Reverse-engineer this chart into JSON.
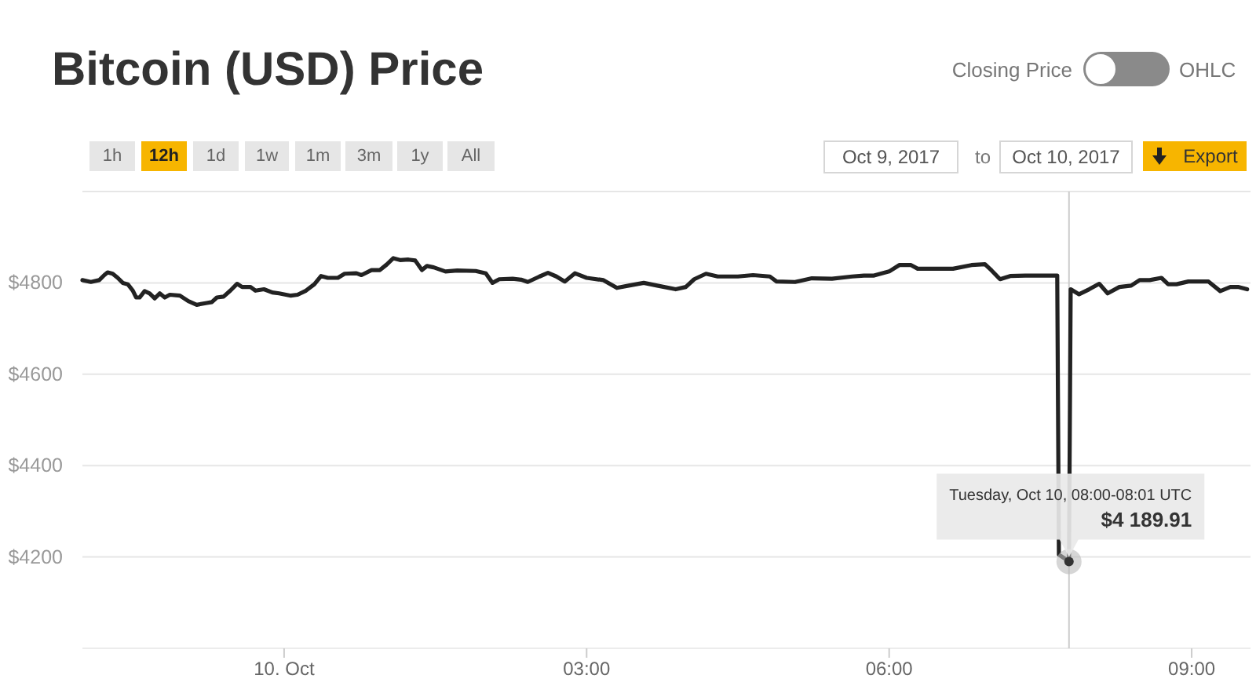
{
  "chart_data": {
    "type": "line",
    "title": "Bitcoin (USD) Price",
    "x": [
      "2017-10-09T22:00",
      "2017-10-09T22:05",
      "2017-10-09T22:10",
      "2017-10-09T22:13",
      "2017-10-09T22:15",
      "2017-10-09T22:18",
      "2017-10-09T22:21",
      "2017-10-09T22:24",
      "2017-10-09T22:27",
      "2017-10-09T22:30",
      "2017-10-09T22:32",
      "2017-10-09T22:34",
      "2017-10-09T22:37",
      "2017-10-09T22:40",
      "2017-10-09T22:43",
      "2017-10-09T22:46",
      "2017-10-09T22:49",
      "2017-10-09T22:52",
      "2017-10-09T22:58",
      "2017-10-09T23:03",
      "2017-10-09T23:08",
      "2017-10-09T23:14",
      "2017-10-09T23:17",
      "2017-10-09T23:20",
      "2017-10-09T23:24",
      "2017-10-09T23:28",
      "2017-10-09T23:32",
      "2017-10-09T23:35",
      "2017-10-09T23:40",
      "2017-10-09T23:43",
      "2017-10-09T23:48",
      "2017-10-09T23:53",
      "2017-10-09T23:57",
      "2017-10-10T00:04",
      "2017-10-10T00:08",
      "2017-10-10T00:13",
      "2017-10-10T00:18",
      "2017-10-10T00:22",
      "2017-10-10T00:26",
      "2017-10-10T00:32",
      "2017-10-10T00:36",
      "2017-10-10T00:43",
      "2017-10-10T00:46",
      "2017-10-10T00:52",
      "2017-10-10T00:57",
      "2017-10-10T01:01",
      "2017-10-10T01:05",
      "2017-10-10T01:09",
      "2017-10-10T01:14",
      "2017-10-10T01:18",
      "2017-10-10T01:22",
      "2017-10-10T01:25",
      "2017-10-10T01:29",
      "2017-10-10T01:36",
      "2017-10-10T01:43",
      "2017-10-10T01:54",
      "2017-10-10T02:00",
      "2017-10-10T02:04",
      "2017-10-10T02:08",
      "2017-10-10T02:16",
      "2017-10-10T02:21",
      "2017-10-10T02:25",
      "2017-10-10T02:32",
      "2017-10-10T02:37",
      "2017-10-10T02:42",
      "2017-10-10T02:47",
      "2017-10-10T02:53",
      "2017-10-10T03:00",
      "2017-10-10T03:10",
      "2017-10-10T03:18",
      "2017-10-10T03:25",
      "2017-10-10T03:34",
      "2017-10-10T03:42",
      "2017-10-10T03:53",
      "2017-10-10T03:59",
      "2017-10-10T04:04",
      "2017-10-10T04:11",
      "2017-10-10T04:18",
      "2017-10-10T04:30",
      "2017-10-10T04:39",
      "2017-10-10T04:49",
      "2017-10-10T04:53",
      "2017-10-10T05:04",
      "2017-10-10T05:14",
      "2017-10-10T05:26",
      "2017-10-10T05:38",
      "2017-10-10T05:45",
      "2017-10-10T05:51",
      "2017-10-10T06:00",
      "2017-10-10T06:06",
      "2017-10-10T06:13",
      "2017-10-10T06:17",
      "2017-10-10T06:38",
      "2017-10-10T06:49",
      "2017-10-10T06:57",
      "2017-10-10T07:01",
      "2017-10-10T07:06",
      "2017-10-10T07:12",
      "2017-10-10T07:21",
      "2017-10-10T07:40",
      "2017-10-10T07:41",
      "2017-10-10T07:47",
      "2017-10-10T07:48",
      "2017-10-10T07:53",
      "2017-10-10T07:59",
      "2017-10-10T08:05",
      "2017-10-10T08:10",
      "2017-10-10T08:17",
      "2017-10-10T08:24",
      "2017-10-10T08:29",
      "2017-10-10T08:35",
      "2017-10-10T08:42",
      "2017-10-10T08:46",
      "2017-10-10T08:51",
      "2017-10-10T08:58",
      "2017-10-10T09:10",
      "2017-10-10T09:17",
      "2017-10-10T09:23",
      "2017-10-10T09:28",
      "2017-10-10T09:33"
    ],
    "series": [
      {
        "color": "#222222",
        "values": [
          4806,
          4802,
          4806,
          4817,
          4823,
          4820,
          4811,
          4800,
          4797,
          4783,
          4768,
          4768,
          4782,
          4777,
          4766,
          4777,
          4768,
          4774,
          4772,
          4760,
          4752,
          4756,
          4758,
          4768,
          4770,
          4783,
          4798,
          4791,
          4791,
          4783,
          4786,
          4779,
          4777,
          4772,
          4774,
          4783,
          4797,
          4815,
          4811,
          4811,
          4820,
          4821,
          4817,
          4828,
          4828,
          4840,
          4854,
          4850,
          4851,
          4849,
          4828,
          4837,
          4834,
          4825,
          4827,
          4826,
          4821,
          4800,
          4808,
          4809,
          4807,
          4802,
          4814,
          4822,
          4814,
          4803,
          4821,
          4811,
          4806,
          4789,
          4794,
          4800,
          4794,
          4786,
          4791,
          4808,
          4820,
          4814,
          4814,
          4817,
          4814,
          4803,
          4802,
          4810,
          4809,
          4814,
          4816,
          4816,
          4825,
          4839,
          4839,
          4831,
          4831,
          4839,
          4841,
          4827,
          4808,
          4815,
          4816,
          4816,
          4205,
          4189.91,
          4786,
          4775,
          4786,
          4798,
          4777,
          4791,
          4794,
          4806,
          4806,
          4811,
          4797,
          4797,
          4803,
          4803,
          4782,
          4791,
          4791,
          4786
        ]
      }
    ],
    "xlim": [
      "2017-10-09T22:00",
      "2017-10-10T09:35"
    ],
    "xticks": [
      {
        "value": "2017-10-10T00:00",
        "label": "10. Oct"
      },
      {
        "value": "2017-10-10T03:00",
        "label": "03:00"
      },
      {
        "value": "2017-10-10T06:00",
        "label": "06:00"
      },
      {
        "value": "2017-10-10T09:00",
        "label": "09:00"
      }
    ],
    "ylim": [
      4000,
      5000
    ],
    "yticks": [
      {
        "value": 4200,
        "label": "$4200"
      },
      {
        "value": 4400,
        "label": "$4400"
      },
      {
        "value": 4600,
        "label": "$4600"
      },
      {
        "value": 4800,
        "label": "$4800"
      },
      {
        "value": 5000,
        "label": null
      }
    ],
    "grid": "y",
    "ref_lines": [
      {
        "axis": "x",
        "value": "2017-10-10T07:47",
        "color": "#cccccc"
      }
    ],
    "annotations": [
      "Closing Price",
      "OHLC",
      "1h",
      "12h",
      "1d",
      "1w",
      "1m",
      "3m",
      "1y",
      "All",
      "Oct 9, 2017",
      "to",
      "Oct 10, 2017",
      "Export",
      "Tuesday, Oct 10, 08:00-08:01 UTC",
      {
        "text": "$4 189.91",
        "x": "2017-10-10T07:47",
        "y": 4189.91
      }
    ]
  }
}
